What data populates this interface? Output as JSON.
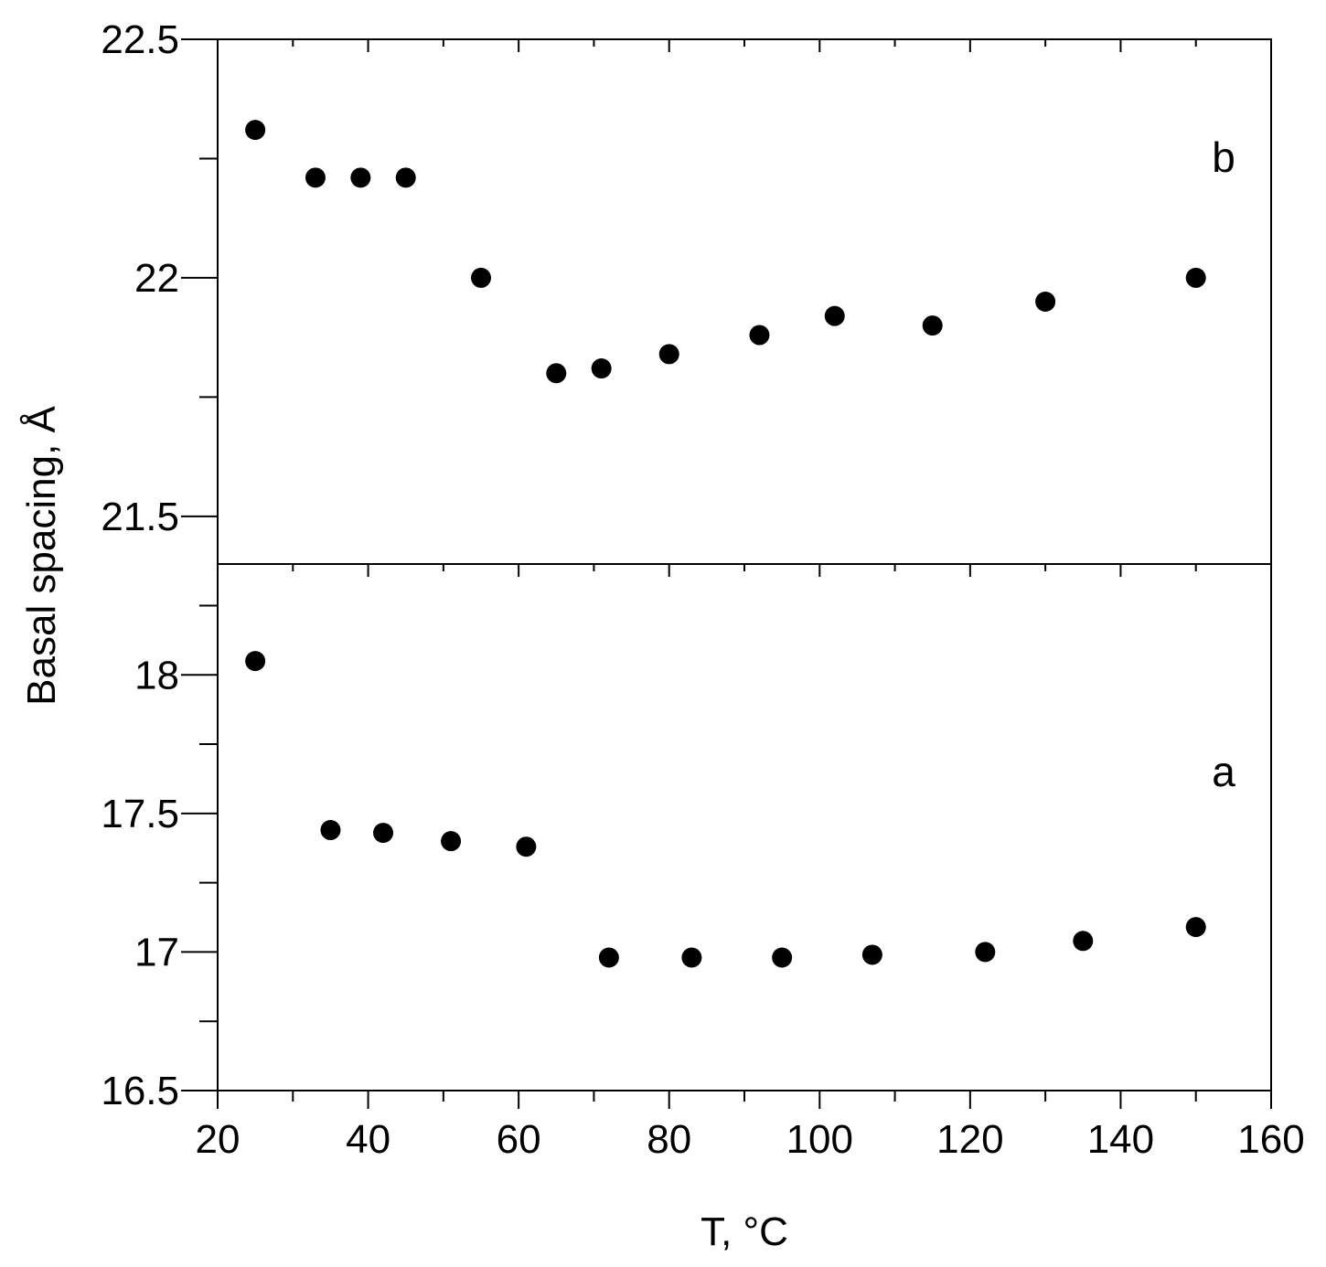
{
  "chart_data": {
    "type": "scatter",
    "xlabel": "T, °C",
    "ylabel": "Basal spacing, Å",
    "xlim": [
      20,
      160
    ],
    "xticks": [
      20,
      40,
      60,
      80,
      100,
      120,
      140,
      160
    ],
    "xtick_labels": [
      "20",
      "40",
      "60",
      "80",
      "100",
      "120",
      "140",
      "160"
    ],
    "marker_color": "#000000",
    "panels": [
      {
        "label": "b",
        "position": "top",
        "ylim": [
          21.4,
          22.5
        ],
        "yticks": [
          21.5,
          22,
          22.5
        ],
        "ytick_labels": [
          "21.5",
          "22",
          "22.5"
        ],
        "x": [
          25,
          33,
          39,
          45,
          55,
          65,
          71,
          80,
          92,
          102,
          115,
          130,
          150
        ],
        "y": [
          22.31,
          22.21,
          22.21,
          22.21,
          22.0,
          21.8,
          21.81,
          21.84,
          21.88,
          21.92,
          21.9,
          21.95,
          22.0
        ]
      },
      {
        "label": "a",
        "position": "bottom",
        "ylim": [
          16.5,
          18.4
        ],
        "yticks": [
          16.5,
          17,
          17.5,
          18
        ],
        "ytick_labels": [
          "16.5",
          "17",
          "17.5",
          "18"
        ],
        "x": [
          25,
          35,
          42,
          51,
          61,
          72,
          83,
          95,
          107,
          122,
          135,
          150
        ],
        "y": [
          18.05,
          17.44,
          17.43,
          17.4,
          17.38,
          16.98,
          16.98,
          16.98,
          16.99,
          17.0,
          17.04,
          17.09
        ]
      }
    ]
  }
}
